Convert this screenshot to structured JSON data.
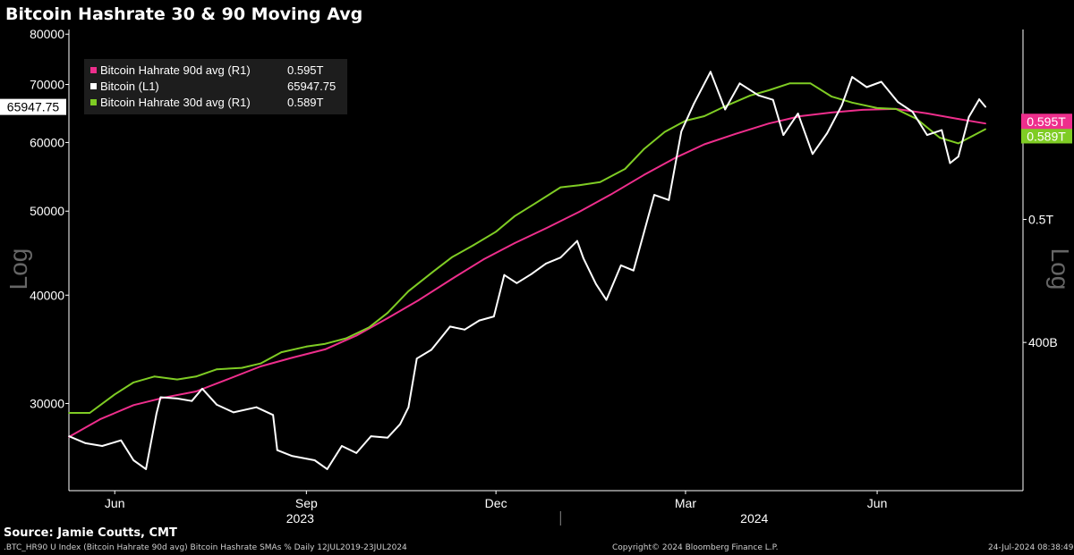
{
  "title": "Bitcoin Hashrate 30 & 90 Moving Avg",
  "source": "Source: Jamie Coutts, CMT",
  "footer": {
    "index": ".BTC_HR90 U Index (Bitcoin Hahrate 90d avg) Bitcoin Hashrate SMAs %  Daily 12JUL2019-23JUL2024",
    "copyright": "Copyright© 2024 Bloomberg Finance L.P.",
    "timestamp": "24-Jul-2024 08:38:49"
  },
  "legend": [
    {
      "label": "Bitcoin Hahrate 90d avg (R1)",
      "value": "0.595T",
      "color": "#ee2e8c"
    },
    {
      "label": "Bitcoin (L1)",
      "value": "65947.75",
      "color": "#ffffff"
    },
    {
      "label": "Bitcoin Hahrate 30d avg (R1)",
      "value": "0.589T",
      "color": "#7fcc24"
    }
  ],
  "chart_data": {
    "type": "line",
    "x_range": [
      "2023-05-10",
      "2024-08-10"
    ],
    "x_month_ticks": [
      {
        "label": "Jun",
        "date": "2023-06-01"
      },
      {
        "label": "Sep",
        "date": "2023-09-01"
      },
      {
        "label": "Dec",
        "date": "2023-12-01"
      },
      {
        "label": "Mar",
        "date": "2024-03-01"
      },
      {
        "label": "Jun",
        "date": "2024-06-01"
      }
    ],
    "x_year_labels": [
      {
        "label": "2023",
        "date": "2023-08-29"
      },
      {
        "label": "2024",
        "date": "2024-04-03"
      }
    ],
    "year_divider_date": "2024-01-01",
    "left_axis": {
      "scale": "log",
      "side_label": "Log",
      "range": [
        23800,
        81000
      ],
      "ticks": [
        {
          "label": "80000",
          "value": 80000
        },
        {
          "label": "70000",
          "value": 70000
        },
        {
          "label": "60000",
          "value": 60000
        },
        {
          "label": "50000",
          "value": 50000
        },
        {
          "label": "40000",
          "value": 40000
        },
        {
          "label": "30000",
          "value": 30000
        }
      ],
      "last_value_label": "65947.75",
      "last_value": 65947.75
    },
    "right_axis": {
      "scale": "log",
      "side_label": "Log",
      "range": [
        0.3057,
        0.7057
      ],
      "ticks": [
        {
          "label": "0.5T",
          "value": 0.5
        },
        {
          "label": "400B",
          "value": 0.4
        }
      ],
      "last_value_labels": [
        {
          "label": "0.595T",
          "value": 0.595,
          "color": "#ee2e8c"
        },
        {
          "label": "0.589T",
          "value": 0.589,
          "color": "#7fcc24"
        }
      ]
    },
    "series": [
      {
        "name": "Bitcoin Hahrate 90d avg (R1)",
        "axis": "right",
        "color": "#ee2e8c",
        "points": [
          [
            "2023-05-10",
            0.337
          ],
          [
            "2023-05-25",
            0.348
          ],
          [
            "2023-06-10",
            0.357
          ],
          [
            "2023-06-25",
            0.362
          ],
          [
            "2023-07-10",
            0.366
          ],
          [
            "2023-07-25",
            0.374
          ],
          [
            "2023-08-10",
            0.383
          ],
          [
            "2023-08-25",
            0.389
          ],
          [
            "2023-09-10",
            0.395
          ],
          [
            "2023-09-25",
            0.405
          ],
          [
            "2023-10-10",
            0.418
          ],
          [
            "2023-10-25",
            0.432
          ],
          [
            "2023-11-10",
            0.449
          ],
          [
            "2023-11-25",
            0.465
          ],
          [
            "2023-12-10",
            0.479
          ],
          [
            "2023-12-25",
            0.492
          ],
          [
            "2024-01-10",
            0.507
          ],
          [
            "2024-01-25",
            0.523
          ],
          [
            "2024-02-10",
            0.542
          ],
          [
            "2024-02-25",
            0.559
          ],
          [
            "2024-03-10",
            0.573
          ],
          [
            "2024-03-25",
            0.584
          ],
          [
            "2024-04-10",
            0.595
          ],
          [
            "2024-04-25",
            0.603
          ],
          [
            "2024-05-10",
            0.607
          ],
          [
            "2024-05-25",
            0.61
          ],
          [
            "2024-06-10",
            0.611
          ],
          [
            "2024-06-25",
            0.606
          ],
          [
            "2024-07-10",
            0.6
          ],
          [
            "2024-07-23",
            0.595
          ]
        ]
      },
      {
        "name": "Bitcoin (L1)",
        "axis": "left",
        "color": "#ffffff",
        "points": [
          [
            "2023-05-10",
            27500
          ],
          [
            "2023-05-18",
            27000
          ],
          [
            "2023-05-26",
            26800
          ],
          [
            "2023-06-04",
            27200
          ],
          [
            "2023-06-10",
            25800
          ],
          [
            "2023-06-16",
            25200
          ],
          [
            "2023-06-21",
            29200
          ],
          [
            "2023-06-23",
            30500
          ],
          [
            "2023-07-01",
            30400
          ],
          [
            "2023-07-08",
            30200
          ],
          [
            "2023-07-13",
            31200
          ],
          [
            "2023-07-20",
            29900
          ],
          [
            "2023-07-28",
            29300
          ],
          [
            "2023-08-08",
            29700
          ],
          [
            "2023-08-16",
            29100
          ],
          [
            "2023-08-18",
            26500
          ],
          [
            "2023-08-25",
            26100
          ],
          [
            "2023-09-05",
            25800
          ],
          [
            "2023-09-11",
            25200
          ],
          [
            "2023-09-18",
            26800
          ],
          [
            "2023-09-25",
            26300
          ],
          [
            "2023-10-02",
            27500
          ],
          [
            "2023-10-10",
            27400
          ],
          [
            "2023-10-16",
            28400
          ],
          [
            "2023-10-20",
            29700
          ],
          [
            "2023-10-24",
            33800
          ],
          [
            "2023-10-31",
            34600
          ],
          [
            "2023-11-09",
            36800
          ],
          [
            "2023-11-16",
            36500
          ],
          [
            "2023-11-23",
            37400
          ],
          [
            "2023-11-30",
            37800
          ],
          [
            "2023-12-05",
            42200
          ],
          [
            "2023-12-11",
            41300
          ],
          [
            "2023-12-18",
            42300
          ],
          [
            "2023-12-25",
            43500
          ],
          [
            "2024-01-01",
            44200
          ],
          [
            "2024-01-09",
            46200
          ],
          [
            "2024-01-12",
            44100
          ],
          [
            "2024-01-18",
            41200
          ],
          [
            "2024-01-23",
            39500
          ],
          [
            "2024-01-30",
            43300
          ],
          [
            "2024-02-05",
            42700
          ],
          [
            "2024-02-10",
            47200
          ],
          [
            "2024-02-15",
            52200
          ],
          [
            "2024-02-22",
            51500
          ],
          [
            "2024-02-28",
            61800
          ],
          [
            "2024-03-05",
            66500
          ],
          [
            "2024-03-13",
            72400
          ],
          [
            "2024-03-20",
            65500
          ],
          [
            "2024-03-27",
            70200
          ],
          [
            "2024-04-05",
            68000
          ],
          [
            "2024-04-12",
            67200
          ],
          [
            "2024-04-17",
            61200
          ],
          [
            "2024-04-24",
            64800
          ],
          [
            "2024-05-01",
            58200
          ],
          [
            "2024-05-08",
            61500
          ],
          [
            "2024-05-15",
            66200
          ],
          [
            "2024-05-20",
            71400
          ],
          [
            "2024-05-27",
            69500
          ],
          [
            "2024-06-03",
            70500
          ],
          [
            "2024-06-11",
            66800
          ],
          [
            "2024-06-18",
            65100
          ],
          [
            "2024-06-25",
            61200
          ],
          [
            "2024-07-02",
            62000
          ],
          [
            "2024-07-06",
            56800
          ],
          [
            "2024-07-10",
            57800
          ],
          [
            "2024-07-15",
            64200
          ],
          [
            "2024-07-20",
            67300
          ],
          [
            "2024-07-23",
            65947.75
          ]
        ]
      },
      {
        "name": "Bitcoin Hahrate 30d avg (R1)",
        "axis": "right",
        "color": "#7fcc24",
        "points": [
          [
            "2023-05-10",
            0.352
          ],
          [
            "2023-05-20",
            0.352
          ],
          [
            "2023-06-01",
            0.364
          ],
          [
            "2023-06-10",
            0.372
          ],
          [
            "2023-06-20",
            0.376
          ],
          [
            "2023-07-01",
            0.374
          ],
          [
            "2023-07-10",
            0.376
          ],
          [
            "2023-07-20",
            0.381
          ],
          [
            "2023-08-01",
            0.382
          ],
          [
            "2023-08-10",
            0.385
          ],
          [
            "2023-08-20",
            0.393
          ],
          [
            "2023-09-01",
            0.397
          ],
          [
            "2023-09-10",
            0.399
          ],
          [
            "2023-09-20",
            0.403
          ],
          [
            "2023-10-01",
            0.411
          ],
          [
            "2023-10-10",
            0.422
          ],
          [
            "2023-10-20",
            0.439
          ],
          [
            "2023-11-01",
            0.455
          ],
          [
            "2023-11-10",
            0.467
          ],
          [
            "2023-11-20",
            0.477
          ],
          [
            "2023-12-01",
            0.489
          ],
          [
            "2023-12-10",
            0.503
          ],
          [
            "2023-12-20",
            0.515
          ],
          [
            "2024-01-01",
            0.53
          ],
          [
            "2024-01-10",
            0.532
          ],
          [
            "2024-01-20",
            0.535
          ],
          [
            "2024-02-01",
            0.548
          ],
          [
            "2024-02-10",
            0.568
          ],
          [
            "2024-02-20",
            0.586
          ],
          [
            "2024-03-01",
            0.598
          ],
          [
            "2024-03-10",
            0.603
          ],
          [
            "2024-03-20",
            0.614
          ],
          [
            "2024-04-01",
            0.626
          ],
          [
            "2024-04-10",
            0.632
          ],
          [
            "2024-04-20",
            0.64
          ],
          [
            "2024-04-30",
            0.64
          ],
          [
            "2024-05-10",
            0.625
          ],
          [
            "2024-05-20",
            0.618
          ],
          [
            "2024-06-01",
            0.612
          ],
          [
            "2024-06-10",
            0.611
          ],
          [
            "2024-06-20",
            0.6
          ],
          [
            "2024-07-01",
            0.58
          ],
          [
            "2024-07-10",
            0.574
          ],
          [
            "2024-07-17",
            0.582
          ],
          [
            "2024-07-23",
            0.589
          ]
        ]
      }
    ]
  }
}
